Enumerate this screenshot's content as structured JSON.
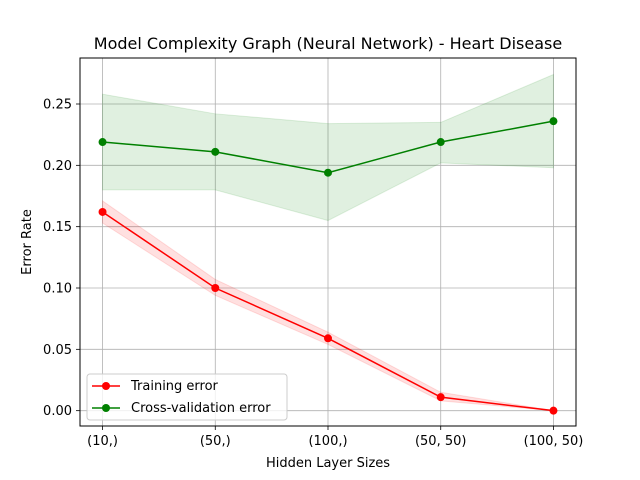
{
  "chart_data": {
    "type": "line",
    "title": "Model Complexity Graph (Neural Network) - Heart Disease",
    "xlabel": "Hidden Layer Sizes",
    "ylabel": "Error Rate",
    "categories": [
      "(10,)",
      "(50,)",
      "(100,)",
      "(50, 50)",
      "(100, 50)"
    ],
    "ylim": [
      -0.0125,
      0.2875
    ],
    "yticks": [
      0.0,
      0.05,
      0.1,
      0.15,
      0.2,
      0.25
    ],
    "ytick_labels": [
      "0.00",
      "0.05",
      "0.10",
      "0.15",
      "0.20",
      "0.25"
    ],
    "grid": true,
    "legend_position": "lower-left",
    "series": [
      {
        "name": "Training error",
        "color": "#ff0000",
        "marker": "circle",
        "values": [
          0.162,
          0.1,
          0.059,
          0.011,
          0.0
        ],
        "band_lower": [
          0.153,
          0.094,
          0.054,
          0.008,
          0.0
        ],
        "band_upper": [
          0.171,
          0.107,
          0.064,
          0.015,
          0.0
        ]
      },
      {
        "name": "Cross-validation error",
        "color": "#008000",
        "marker": "circle",
        "values": [
          0.219,
          0.211,
          0.194,
          0.219,
          0.236
        ],
        "band_lower": [
          0.18,
          0.18,
          0.155,
          0.202,
          0.198
        ],
        "band_upper": [
          0.258,
          0.242,
          0.234,
          0.235,
          0.274
        ]
      }
    ]
  }
}
